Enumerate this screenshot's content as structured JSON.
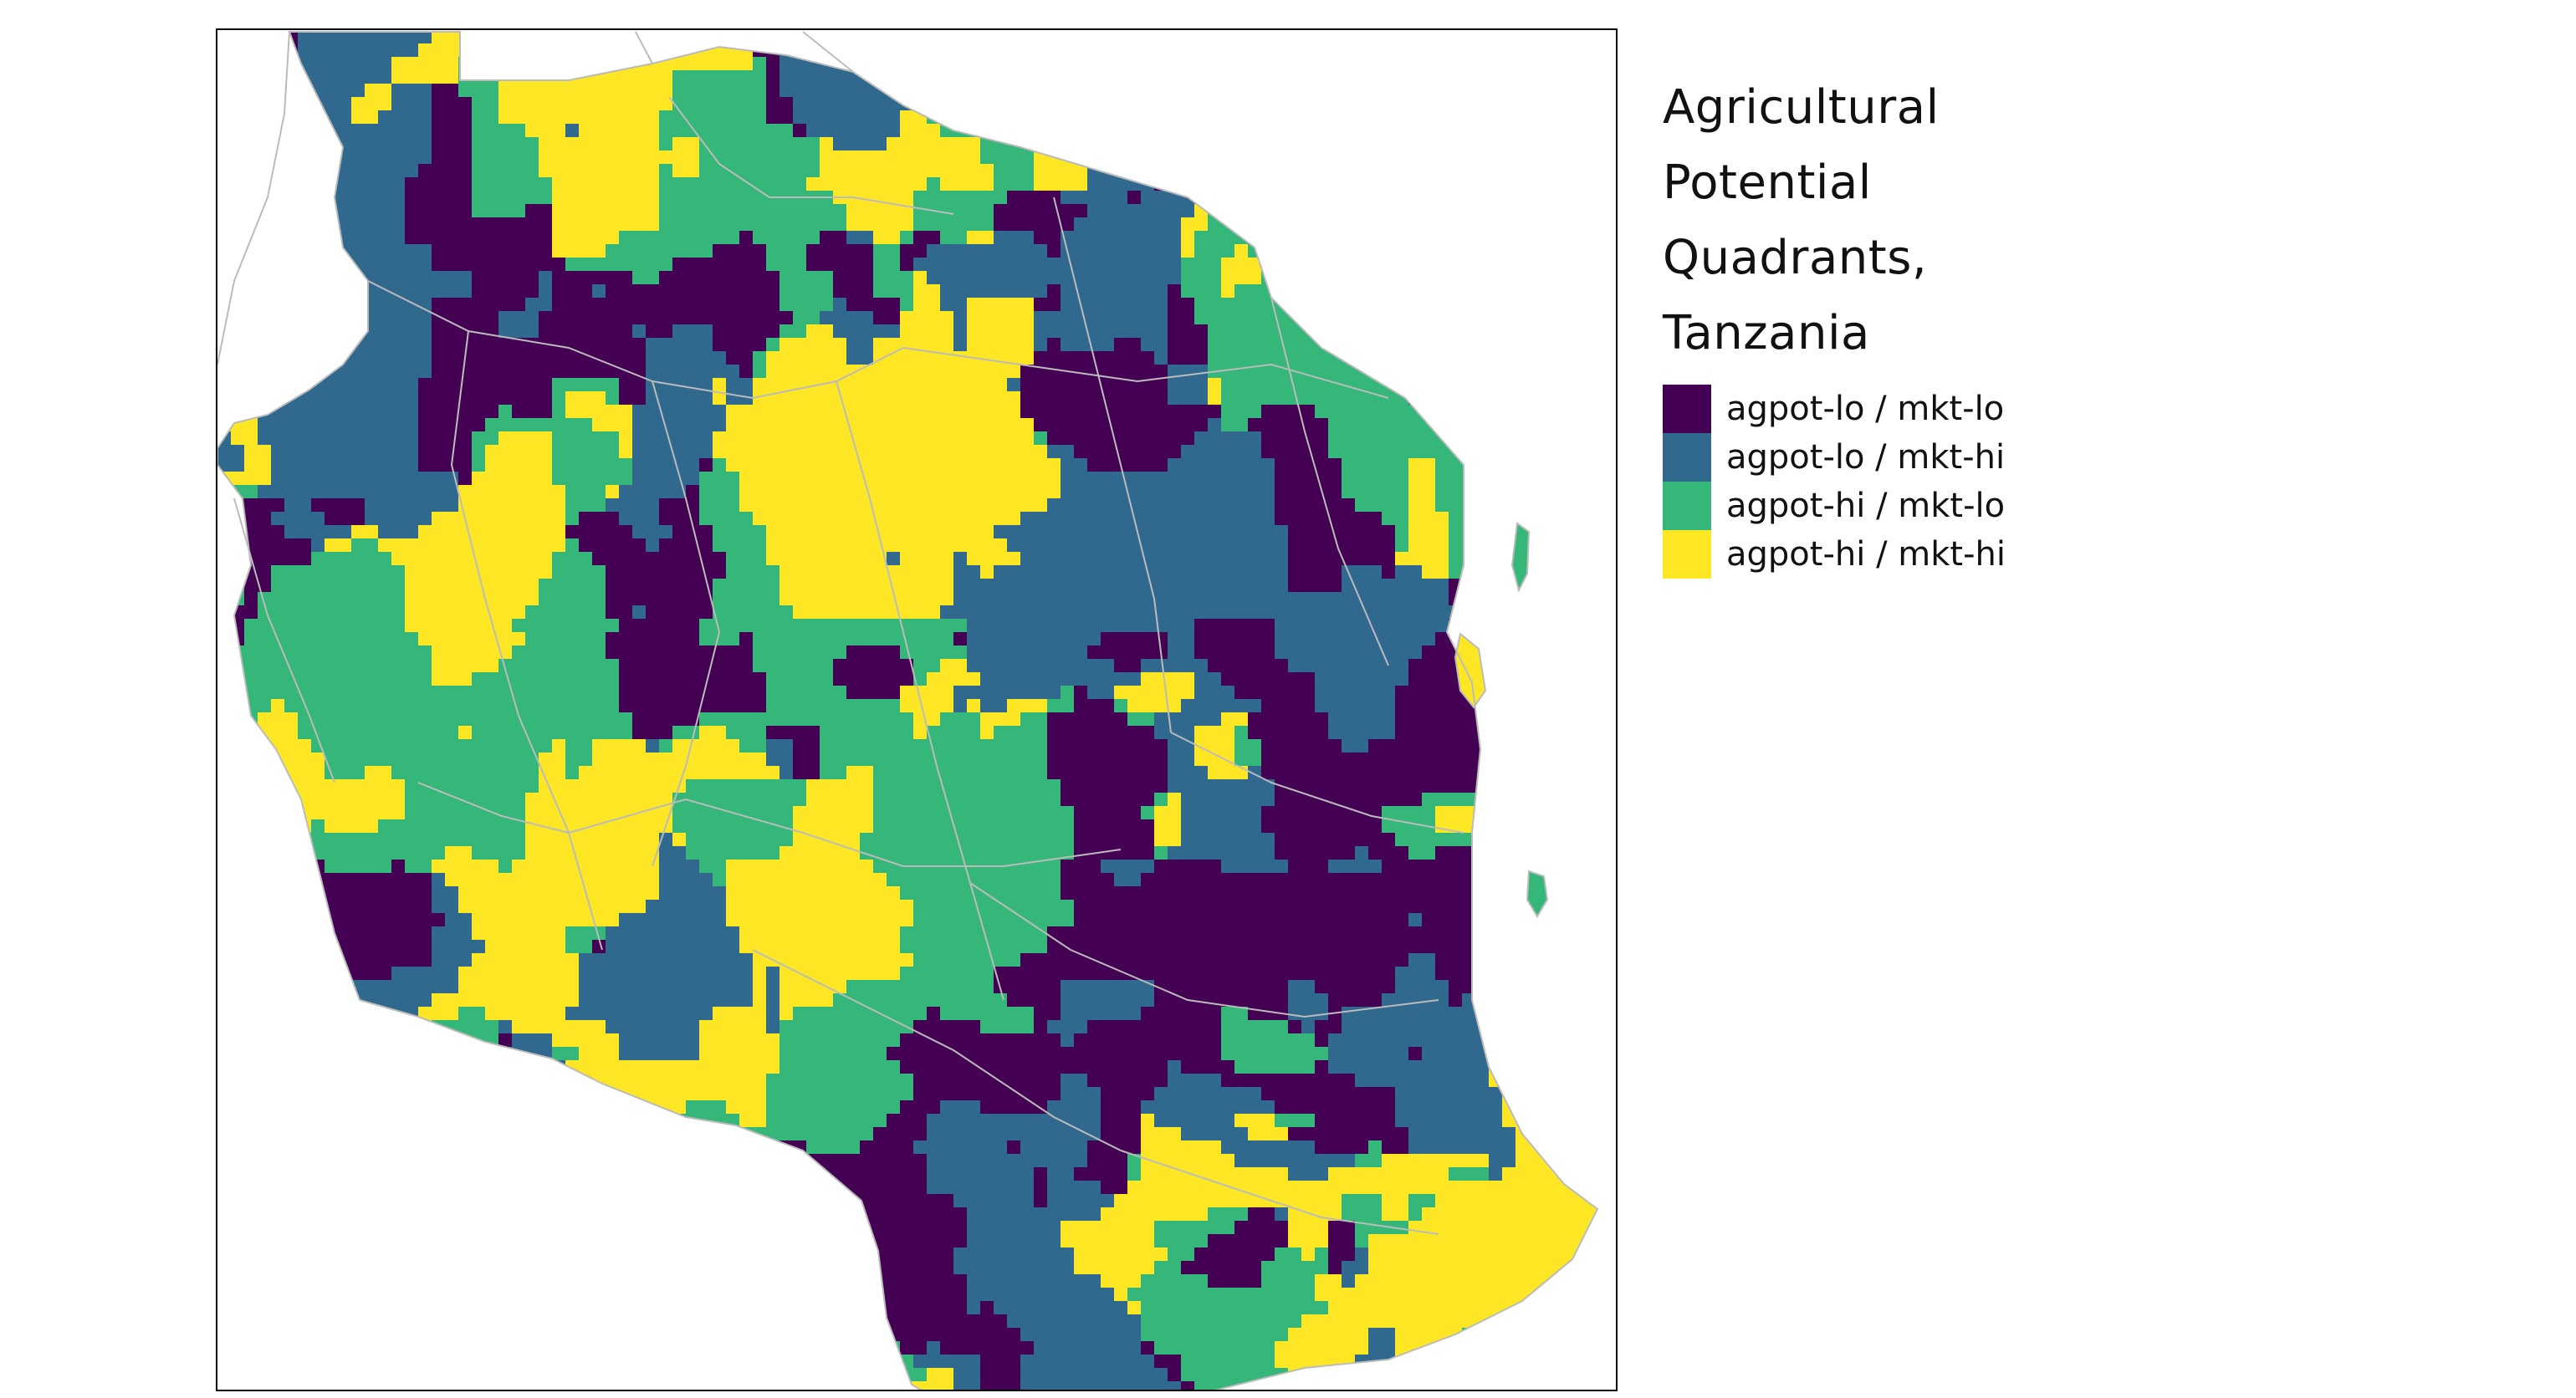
{
  "legend": {
    "title_lines": [
      "Agricultural",
      "Potential",
      "Quadrants,",
      "Tanzania"
    ],
    "items": [
      {
        "label": "agpot-lo / mkt-lo",
        "color": "#440154"
      },
      {
        "label": "agpot-lo / mkt-hi",
        "color": "#31688E"
      },
      {
        "label": "agpot-hi / mkt-lo",
        "color": "#35B779"
      },
      {
        "label": "agpot-hi / mkt-hi",
        "color": "#FDE725"
      }
    ]
  },
  "map": {
    "boundary_color": "#bbbbbb",
    "frame_color": "#000000",
    "background": "#ffffff"
  }
}
